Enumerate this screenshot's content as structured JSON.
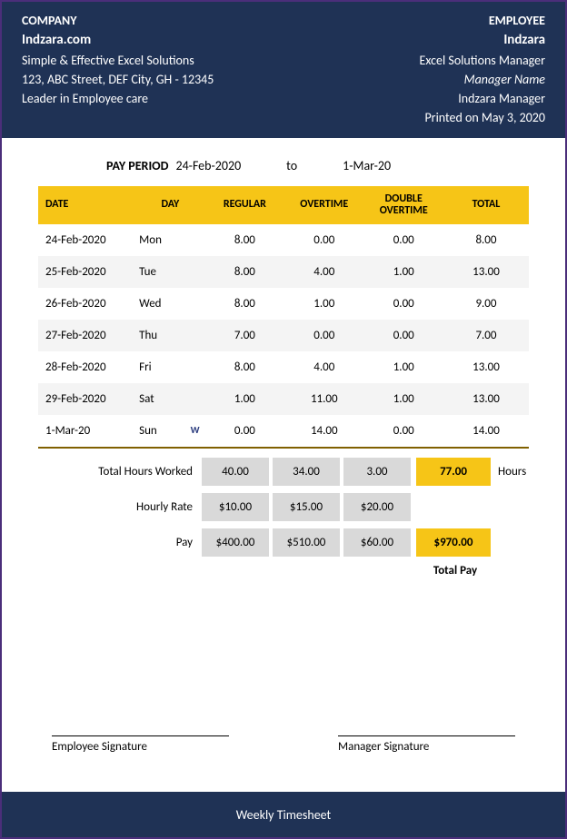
{
  "colors": {
    "frame": "#4b2e7a",
    "header_bg": "#1f3255",
    "header_text": "#ffffff",
    "accent": "#f6c517",
    "row_alt": "#f4f4f4",
    "summary_cell": "#d9d9d9",
    "bottom_border": "#806000"
  },
  "company": {
    "label": "COMPANY",
    "name": "Indzara.com",
    "tagline": "Simple & Effective Excel Solutions",
    "address": "123, ABC Street, DEF City, GH - 12345",
    "slogan": "Leader in Employee care"
  },
  "employee": {
    "label": "EMPLOYEE",
    "name": "Indzara",
    "title": "Excel Solutions Manager",
    "manager_label": "Manager Name",
    "manager_name": "Indzara Manager",
    "printed": "Printed on May 3, 2020"
  },
  "pay_period": {
    "label": "PAY PERIOD",
    "from": "24-Feb-2020",
    "to_label": "to",
    "to": "1-Mar-20"
  },
  "table": {
    "headers": {
      "date": "DATE",
      "day": "DAY",
      "regular": "REGULAR",
      "overtime": "OVERTIME",
      "double_overtime": "DOUBLE OVERTIME",
      "total": "TOTAL"
    },
    "rows": [
      {
        "date": "24-Feb-2020",
        "day": "Mon",
        "regular": "8.00",
        "overtime": "0.00",
        "double": "0.00",
        "total": "8.00",
        "mark": ""
      },
      {
        "date": "25-Feb-2020",
        "day": "Tue",
        "regular": "8.00",
        "overtime": "4.00",
        "double": "1.00",
        "total": "13.00",
        "mark": ""
      },
      {
        "date": "26-Feb-2020",
        "day": "Wed",
        "regular": "8.00",
        "overtime": "1.00",
        "double": "0.00",
        "total": "9.00",
        "mark": ""
      },
      {
        "date": "27-Feb-2020",
        "day": "Thu",
        "regular": "7.00",
        "overtime": "0.00",
        "double": "0.00",
        "total": "7.00",
        "mark": ""
      },
      {
        "date": "28-Feb-2020",
        "day": "Fri",
        "regular": "8.00",
        "overtime": "4.00",
        "double": "1.00",
        "total": "13.00",
        "mark": ""
      },
      {
        "date": "29-Feb-2020",
        "day": "Sat",
        "regular": "1.00",
        "overtime": "11.00",
        "double": "1.00",
        "total": "13.00",
        "mark": ""
      },
      {
        "date": "1-Mar-20",
        "day": "Sun",
        "regular": "0.00",
        "overtime": "14.00",
        "double": "0.00",
        "total": "14.00",
        "mark": "W"
      }
    ]
  },
  "summary": {
    "total_hours_label": "Total Hours Worked",
    "total_hours": {
      "regular": "40.00",
      "overtime": "34.00",
      "double": "3.00",
      "total": "77.00"
    },
    "hours_suffix": "Hours",
    "rate_label": "Hourly Rate",
    "rate": {
      "regular": "$10.00",
      "overtime": "$15.00",
      "double": "$20.00"
    },
    "pay_label": "Pay",
    "pay": {
      "regular": "$400.00",
      "overtime": "$510.00",
      "double": "$60.00",
      "total": "$970.00"
    },
    "total_pay_label": "Total Pay"
  },
  "signatures": {
    "employee": "Employee Signature",
    "manager": "Manager Signature"
  },
  "footer": "Weekly Timesheet"
}
